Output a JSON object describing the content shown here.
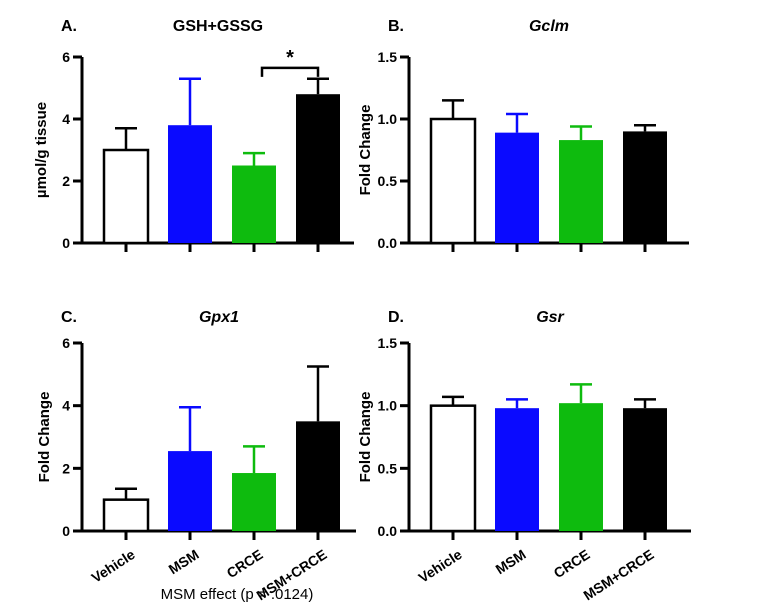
{
  "figure": {
    "background": "#FFFFFF",
    "axis_color": "#000000",
    "caption": "MSM effect (p = .0124)",
    "categories": [
      "Vehicle",
      "MSM",
      "CRCE",
      "MSM+CRCE"
    ],
    "bar_colors": [
      "#FFFFFF",
      "#0A0AFF",
      "#0EBB0E",
      "#000000"
    ],
    "error_colors": [
      "#000000",
      "#0A0AFF",
      "#0EBB0E",
      "#000000"
    ]
  },
  "chart_data": [
    {
      "type": "bar",
      "panel_label": "A.",
      "title": "GSH+GSSG",
      "title_italic": false,
      "ylabel": "µmol/g tissue",
      "ylim": [
        0,
        6
      ],
      "ytick_labels": [
        "0",
        "2",
        "4",
        "6"
      ],
      "categories": [
        "Vehicle",
        "MSM",
        "CRCE",
        "MSM+CRCE"
      ],
      "values": [
        3.0,
        3.8,
        2.5,
        4.8
      ],
      "errors": [
        0.7,
        1.5,
        0.4,
        0.5
      ],
      "show_x_labels": false,
      "legend": "none",
      "grid": false,
      "significance": {
        "from_index": 2,
        "to_index": 3,
        "label": "*",
        "y_value": 5.65
      }
    },
    {
      "type": "bar",
      "panel_label": "B.",
      "title": "Gclm",
      "title_italic": true,
      "ylabel": "Fold Change",
      "ylim": [
        0,
        1.5
      ],
      "ytick_labels": [
        "0.0",
        "0.5",
        "1.0",
        "1.5"
      ],
      "categories": [
        "Vehicle",
        "MSM",
        "CRCE",
        "MSM+CRCE"
      ],
      "values": [
        1.0,
        0.89,
        0.83,
        0.9
      ],
      "errors": [
        0.15,
        0.15,
        0.11,
        0.05
      ],
      "show_x_labels": false,
      "legend": "none",
      "grid": false,
      "significance": null
    },
    {
      "type": "bar",
      "panel_label": "C.",
      "title": "Gpx1",
      "title_italic": true,
      "ylabel": "Fold Change",
      "ylim": [
        0,
        6
      ],
      "ytick_labels": [
        "0",
        "2",
        "4",
        "6"
      ],
      "categories": [
        "Vehicle",
        "MSM",
        "CRCE",
        "MSM+CRCE"
      ],
      "values": [
        1.0,
        2.55,
        1.85,
        3.5
      ],
      "errors": [
        0.35,
        1.4,
        0.85,
        1.75
      ],
      "show_x_labels": true,
      "legend": "none",
      "grid": false,
      "significance": null
    },
    {
      "type": "bar",
      "panel_label": "D.",
      "title": "Gsr",
      "title_italic": true,
      "ylabel": "Fold Change",
      "ylim": [
        0,
        1.5
      ],
      "ytick_labels": [
        "0.0",
        "0.5",
        "1.0",
        "1.5"
      ],
      "categories": [
        "Vehicle",
        "MSM",
        "CRCE",
        "MSM+CRCE"
      ],
      "values": [
        1.0,
        0.98,
        1.02,
        0.98
      ],
      "errors": [
        0.07,
        0.07,
        0.15,
        0.07
      ],
      "show_x_labels": true,
      "legend": "none",
      "grid": false,
      "significance": null
    }
  ]
}
